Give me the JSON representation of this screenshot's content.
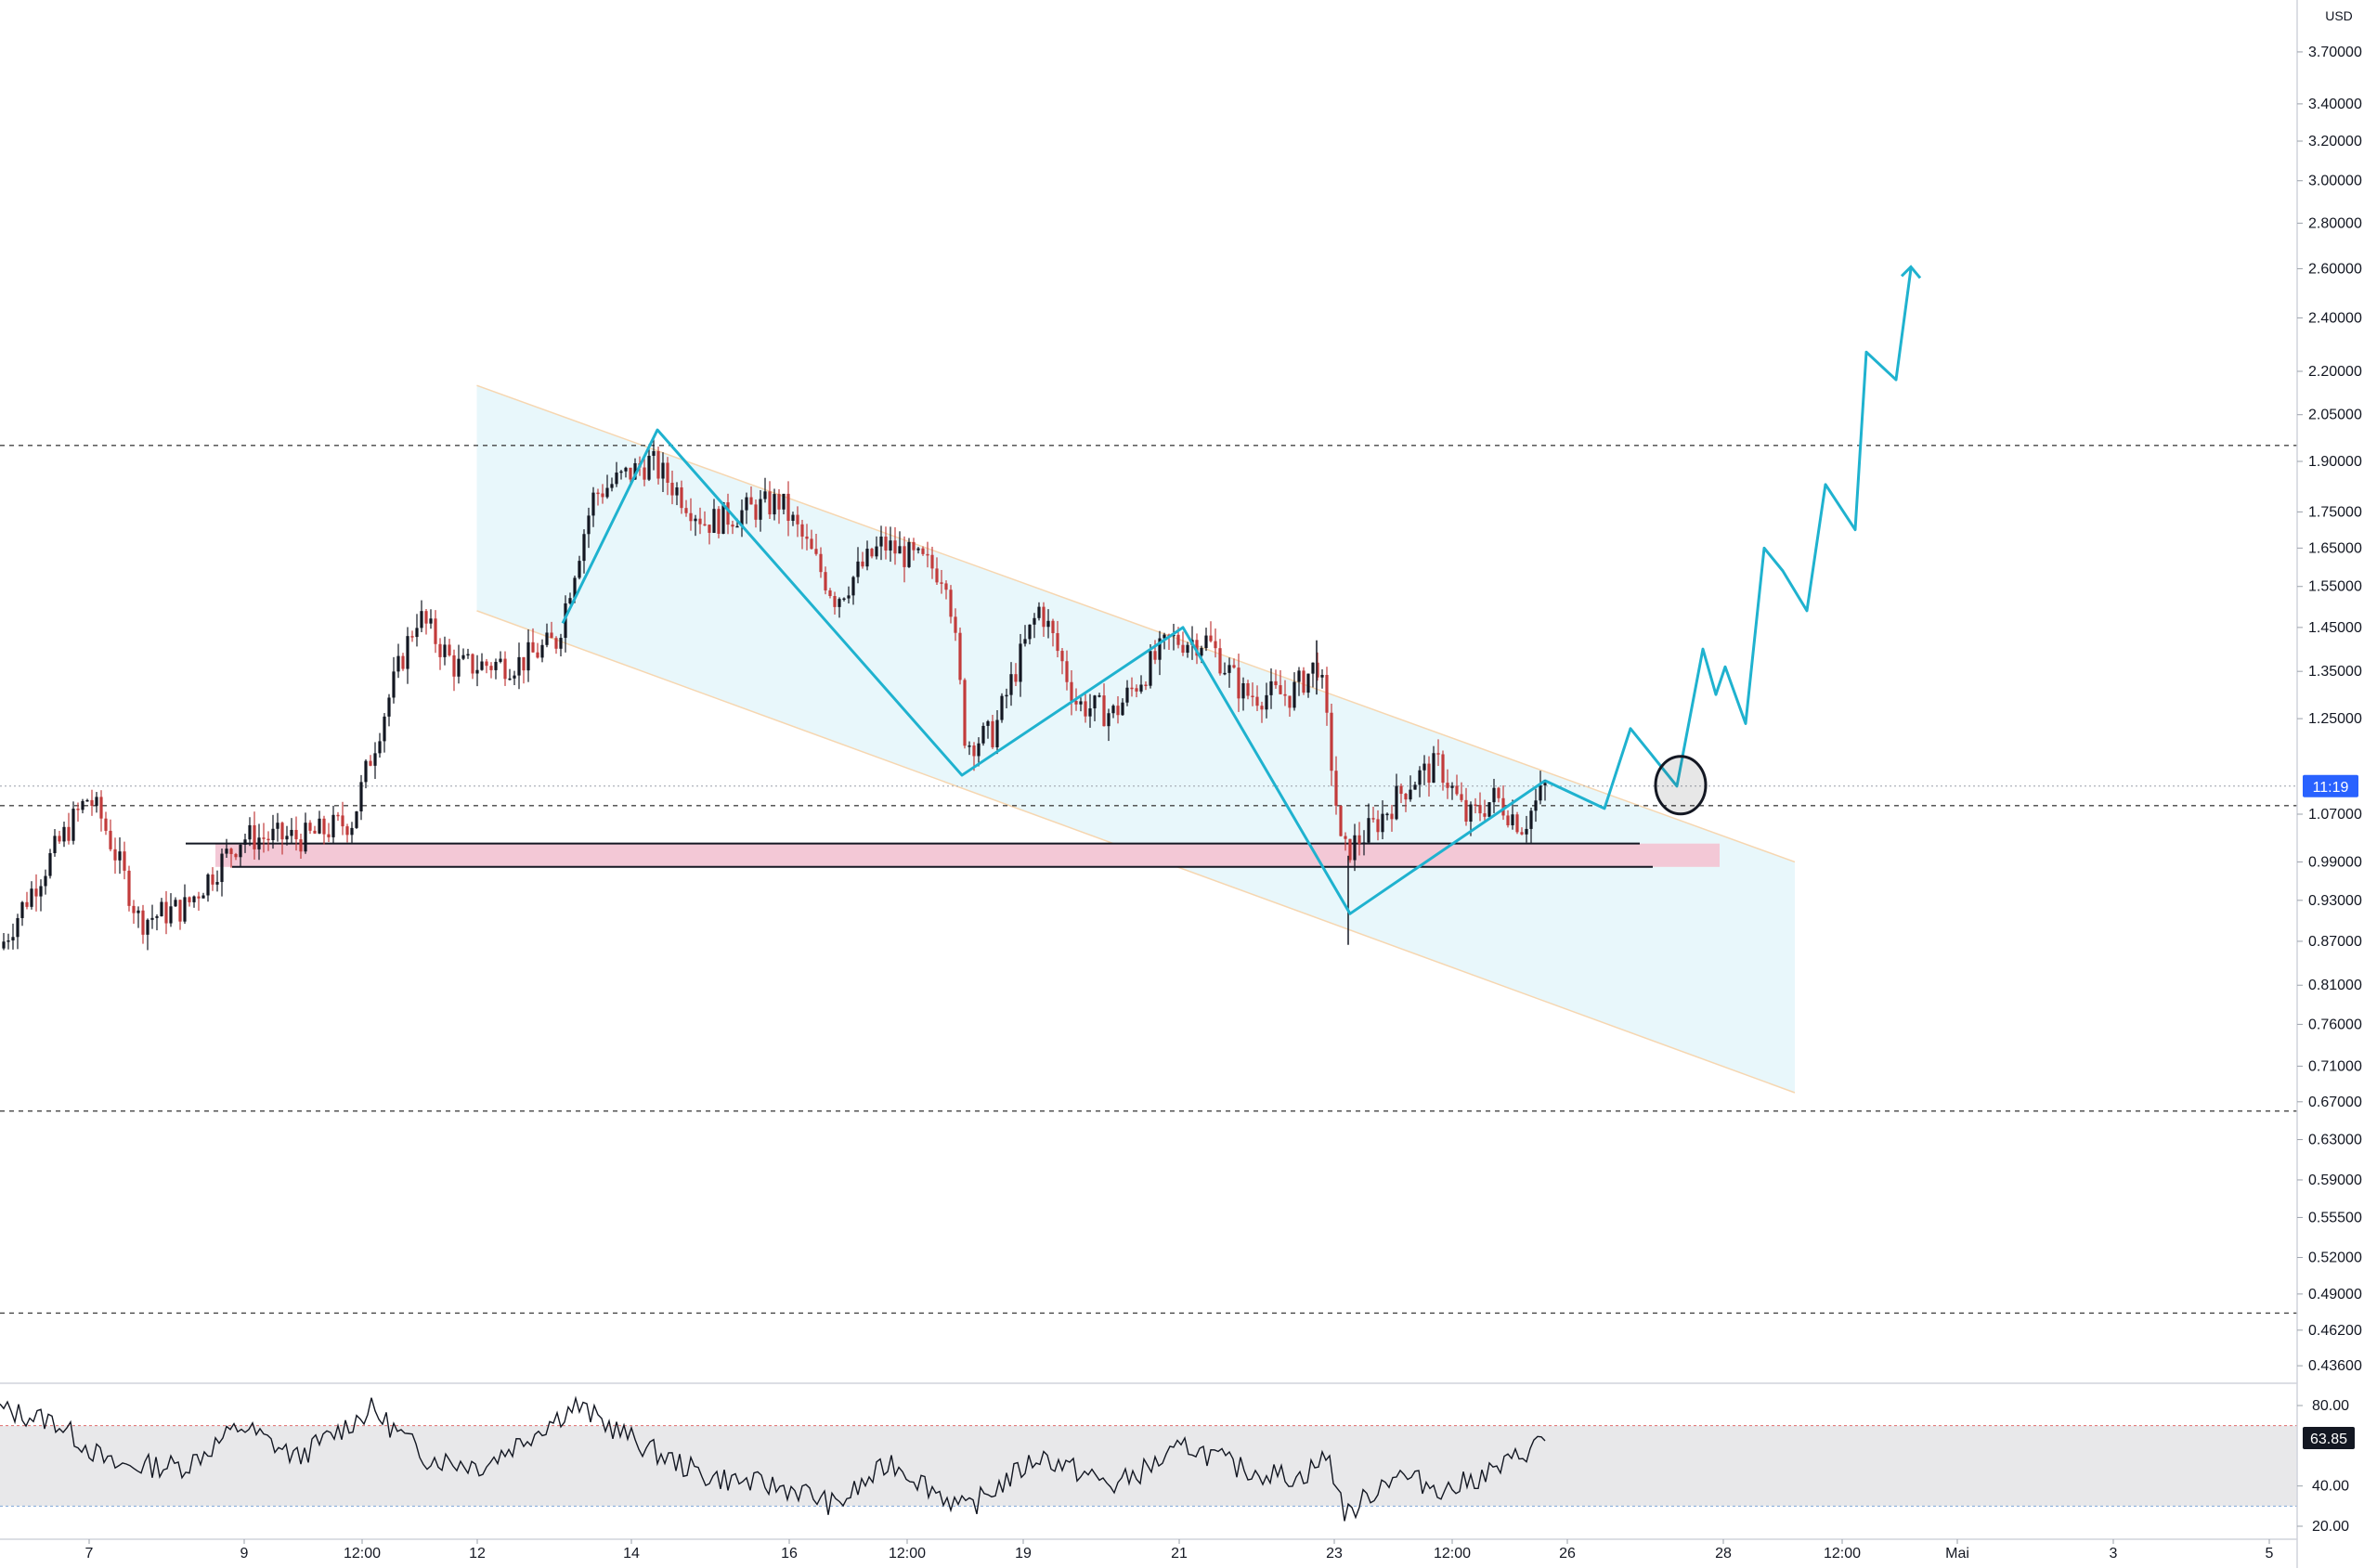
{
  "colors": {
    "background": "#ffffff",
    "candle_up": "#131722",
    "candle_down": "#c23b3b",
    "projection": "#1fb2cf",
    "channel_fill": "#e8f7fb",
    "channel_border": "#f6d6b0",
    "zone_fill": "#f3c8d6",
    "level_line": "#444444",
    "rsi_line": "#131722",
    "rsi_band": "#e8e8ea",
    "rsi_bounds": "#e06c6c",
    "current_price_badge": "#2962ff",
    "rsi_badge": "#131722"
  },
  "chart_data": {
    "type": "line",
    "title": "",
    "ylabel": "USD",
    "scale": "log",
    "ylim": [
      0.42,
      4.1
    ],
    "price_axis": {
      "unit_label": "USD",
      "ticks": [
        "3.70000",
        "3.40000",
        "3.20000",
        "3.00000",
        "2.80000",
        "2.60000",
        "2.40000",
        "2.20000",
        "2.05000",
        "1.90000",
        "1.75000",
        "1.65000",
        "1.55000",
        "1.45000",
        "1.35000",
        "1.25000",
        "1.07000",
        "0.99000",
        "0.93000",
        "0.87000",
        "0.81000",
        "0.76000",
        "0.71000",
        "0.67000",
        "0.63000",
        "0.59000",
        "0.55500",
        "0.52000",
        "0.49000",
        "0.46200",
        "0.43600"
      ],
      "current_price_badge": "11:19",
      "current_price": 1.12
    },
    "time_axis": {
      "ticks": [
        "7",
        "9",
        "12:00",
        "12",
        "14",
        "16",
        "12:00",
        "19",
        "21",
        "23",
        "12:00",
        "26",
        "28",
        "12:00",
        "Mai",
        "3",
        "5"
      ]
    },
    "horizontal_levels": [
      1.95,
      1.085,
      0.66,
      0.475
    ],
    "support_zone": {
      "low": 0.982,
      "high": 1.02
    },
    "descending_channel": {
      "upper": [
        [
          "Apr 12",
          2.15
        ],
        [
          "Apr 29",
          0.99
        ]
      ],
      "lower": [
        [
          "Apr 12",
          1.49
        ],
        [
          "Apr 29",
          0.68
        ]
      ]
    },
    "zigzag_pattern": [
      [
        "Apr 13",
        1.46
      ],
      [
        "Apr 14",
        2.0
      ],
      [
        "Apr 17",
        1.14
      ],
      [
        "Apr 20",
        1.45
      ],
      [
        "Apr 22",
        0.91
      ],
      [
        "Apr 24",
        1.13
      ]
    ],
    "projected_path": [
      [
        "Apr 24",
        1.13
      ],
      [
        "Apr 25",
        1.08
      ],
      [
        "Apr 26",
        1.23
      ],
      [
        "Apr 27",
        1.12
      ],
      [
        "Apr 27",
        1.4
      ],
      [
        "Apr 28",
        1.3
      ],
      [
        "Apr 28",
        1.36
      ],
      [
        "Apr 28",
        1.24
      ],
      [
        "Apr 28",
        1.65
      ],
      [
        "Apr 29",
        1.59
      ],
      [
        "Apr 29",
        1.49
      ],
      [
        "Apr 29",
        1.83
      ],
      [
        "Apr 29",
        1.7
      ],
      [
        "Apr 30",
        2.27
      ],
      [
        "Apr 30",
        2.17
      ],
      [
        "Apr 30",
        2.6
      ]
    ],
    "retest_marker": [
      "Apr 27",
      1.12
    ],
    "rsi": {
      "ylim": [
        10,
        95
      ],
      "ticks": [
        "80.00",
        "40.00",
        "20.00"
      ],
      "upper_bound": 70,
      "lower_bound": 30,
      "last_value_label": "63.85"
    }
  }
}
